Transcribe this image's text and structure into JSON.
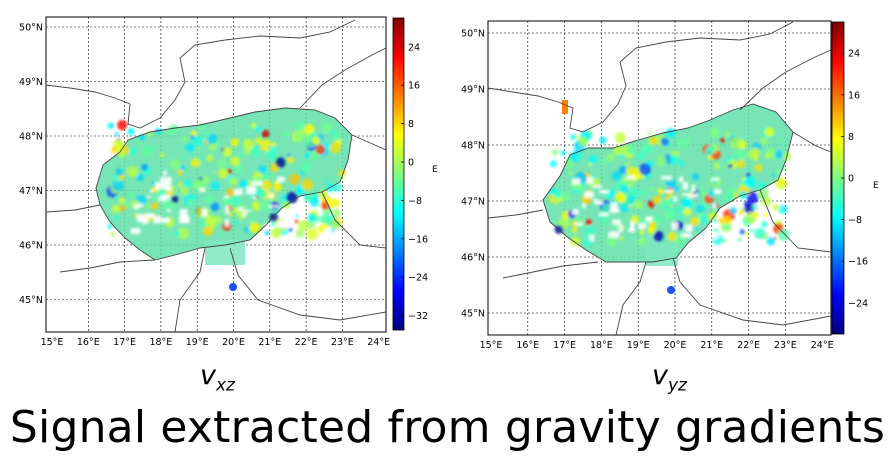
{
  "slide_title": "Signal extracted from gravity gradients",
  "unit_label": "E",
  "panels": [
    {
      "id": "vxz",
      "label_main": "v",
      "label_sub": "xz",
      "lat_ticks": [
        "50°N",
        "49°N",
        "48°N",
        "47°N",
        "46°N",
        "45°N"
      ],
      "lon_ticks": [
        "15°E",
        "16°E",
        "17°E",
        "18°E",
        "19°E",
        "20°E",
        "21°E",
        "22°E",
        "23°E",
        "24°E"
      ],
      "colorbar_ticks": [
        "24",
        "16",
        "8",
        "0",
        "−8",
        "−16",
        "−24",
        "−32"
      ],
      "colorbar_range": [
        -35,
        30
      ]
    },
    {
      "id": "vyz",
      "label_main": "v",
      "label_sub": "yz",
      "lat_ticks": [
        "50°N",
        "49°N",
        "48°N",
        "47°N",
        "46°N",
        "45°N"
      ],
      "lon_ticks": [
        "15°E",
        "16°E",
        "17°E",
        "18°E",
        "19°E",
        "20°E",
        "21°E",
        "22°E",
        "23°E",
        "24°E"
      ],
      "colorbar_ticks": [
        "24",
        "16",
        "8",
        "0",
        "−8",
        "−16",
        "−24"
      ],
      "colorbar_range": [
        -30,
        30
      ]
    }
  ],
  "colors": {
    "colormap": [
      "#00007f",
      "#0000ff",
      "#007fff",
      "#00ffff",
      "#7fff7f",
      "#ffff00",
      "#ff7f00",
      "#ff0000",
      "#7f0000"
    ]
  }
}
